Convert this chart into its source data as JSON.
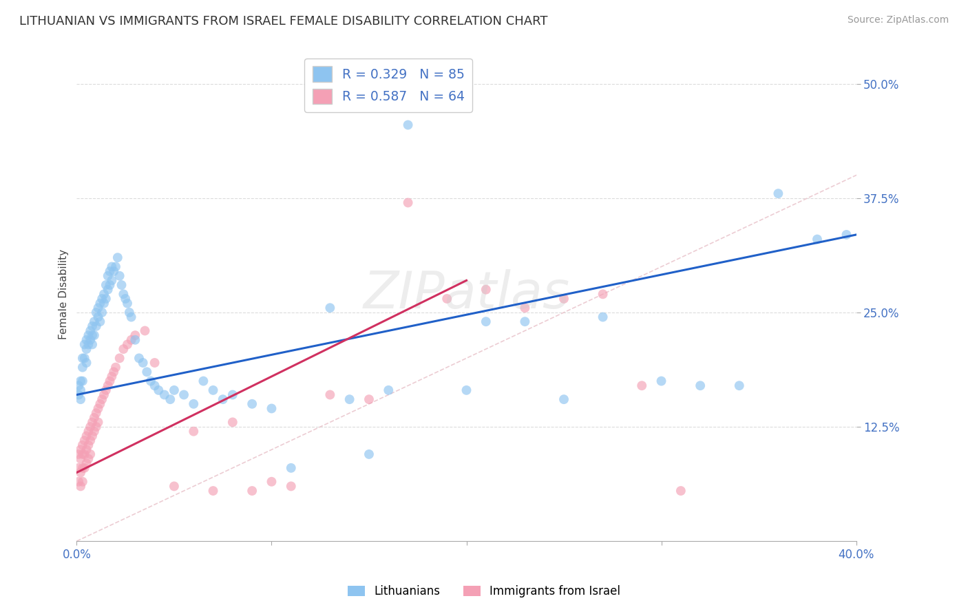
{
  "title": "LITHUANIAN VS IMMIGRANTS FROM ISRAEL FEMALE DISABILITY CORRELATION CHART",
  "source": "Source: ZipAtlas.com",
  "ylabel": "Female Disability",
  "ytick_labels": [
    "50.0%",
    "37.5%",
    "25.0%",
    "12.5%"
  ],
  "ytick_values": [
    0.5,
    0.375,
    0.25,
    0.125
  ],
  "xlim": [
    0.0,
    0.4
  ],
  "ylim": [
    0.0,
    0.54
  ],
  "title_fontsize": 13,
  "source_fontsize": 10,
  "axis_label_fontsize": 11,
  "tick_fontsize": 12,
  "legend_R1": "R = 0.329",
  "legend_N1": "N = 85",
  "legend_R2": "R = 0.587",
  "legend_N2": "N = 64",
  "color_lithuanian": "#8EC4F0",
  "color_israel": "#F4A0B5",
  "color_trend_lithuanian": "#2060C8",
  "color_trend_israel": "#D03060",
  "color_diagonal": "#E8C0C8",
  "background_color": "#FFFFFF",
  "lith_trend_x0": 0.0,
  "lith_trend_y0": 0.16,
  "lith_trend_x1": 0.4,
  "lith_trend_y1": 0.335,
  "isr_trend_x0": 0.0,
  "isr_trend_y0": 0.075,
  "isr_trend_x1": 0.2,
  "isr_trend_y1": 0.285,
  "Lithuanian_x": [
    0.001,
    0.001,
    0.002,
    0.002,
    0.002,
    0.003,
    0.003,
    0.003,
    0.004,
    0.004,
    0.005,
    0.005,
    0.005,
    0.006,
    0.006,
    0.007,
    0.007,
    0.008,
    0.008,
    0.008,
    0.009,
    0.009,
    0.01,
    0.01,
    0.011,
    0.011,
    0.012,
    0.012,
    0.013,
    0.013,
    0.014,
    0.014,
    0.015,
    0.015,
    0.016,
    0.016,
    0.017,
    0.017,
    0.018,
    0.018,
    0.019,
    0.02,
    0.021,
    0.022,
    0.023,
    0.024,
    0.025,
    0.026,
    0.027,
    0.028,
    0.03,
    0.032,
    0.034,
    0.036,
    0.038,
    0.04,
    0.042,
    0.045,
    0.048,
    0.05,
    0.055,
    0.06,
    0.065,
    0.07,
    0.075,
    0.08,
    0.09,
    0.1,
    0.11,
    0.13,
    0.14,
    0.15,
    0.16,
    0.17,
    0.2,
    0.21,
    0.23,
    0.25,
    0.27,
    0.3,
    0.32,
    0.34,
    0.36,
    0.38,
    0.395
  ],
  "Lithuanian_y": [
    0.17,
    0.16,
    0.175,
    0.165,
    0.155,
    0.2,
    0.19,
    0.175,
    0.215,
    0.2,
    0.22,
    0.21,
    0.195,
    0.225,
    0.215,
    0.23,
    0.22,
    0.235,
    0.225,
    0.215,
    0.24,
    0.225,
    0.25,
    0.235,
    0.245,
    0.255,
    0.26,
    0.24,
    0.265,
    0.25,
    0.27,
    0.26,
    0.28,
    0.265,
    0.29,
    0.275,
    0.295,
    0.28,
    0.3,
    0.285,
    0.295,
    0.3,
    0.31,
    0.29,
    0.28,
    0.27,
    0.265,
    0.26,
    0.25,
    0.245,
    0.22,
    0.2,
    0.195,
    0.185,
    0.175,
    0.17,
    0.165,
    0.16,
    0.155,
    0.165,
    0.16,
    0.15,
    0.175,
    0.165,
    0.155,
    0.16,
    0.15,
    0.145,
    0.08,
    0.255,
    0.155,
    0.095,
    0.165,
    0.455,
    0.165,
    0.24,
    0.24,
    0.155,
    0.245,
    0.175,
    0.17,
    0.17,
    0.38,
    0.33,
    0.335
  ],
  "Israel_x": [
    0.001,
    0.001,
    0.001,
    0.002,
    0.002,
    0.002,
    0.002,
    0.003,
    0.003,
    0.003,
    0.003,
    0.004,
    0.004,
    0.004,
    0.005,
    0.005,
    0.005,
    0.006,
    0.006,
    0.006,
    0.007,
    0.007,
    0.007,
    0.008,
    0.008,
    0.009,
    0.009,
    0.01,
    0.01,
    0.011,
    0.011,
    0.012,
    0.013,
    0.014,
    0.015,
    0.016,
    0.017,
    0.018,
    0.019,
    0.02,
    0.022,
    0.024,
    0.026,
    0.028,
    0.03,
    0.035,
    0.04,
    0.05,
    0.06,
    0.07,
    0.08,
    0.09,
    0.1,
    0.11,
    0.13,
    0.15,
    0.17,
    0.19,
    0.21,
    0.23,
    0.25,
    0.27,
    0.29,
    0.31
  ],
  "Israel_y": [
    0.095,
    0.08,
    0.065,
    0.1,
    0.09,
    0.075,
    0.06,
    0.105,
    0.095,
    0.08,
    0.065,
    0.11,
    0.095,
    0.08,
    0.115,
    0.1,
    0.085,
    0.12,
    0.105,
    0.09,
    0.125,
    0.11,
    0.095,
    0.13,
    0.115,
    0.135,
    0.12,
    0.14,
    0.125,
    0.145,
    0.13,
    0.15,
    0.155,
    0.16,
    0.165,
    0.17,
    0.175,
    0.18,
    0.185,
    0.19,
    0.2,
    0.21,
    0.215,
    0.22,
    0.225,
    0.23,
    0.195,
    0.06,
    0.12,
    0.055,
    0.13,
    0.055,
    0.065,
    0.06,
    0.16,
    0.155,
    0.37,
    0.265,
    0.275,
    0.255,
    0.265,
    0.27,
    0.17,
    0.055
  ]
}
